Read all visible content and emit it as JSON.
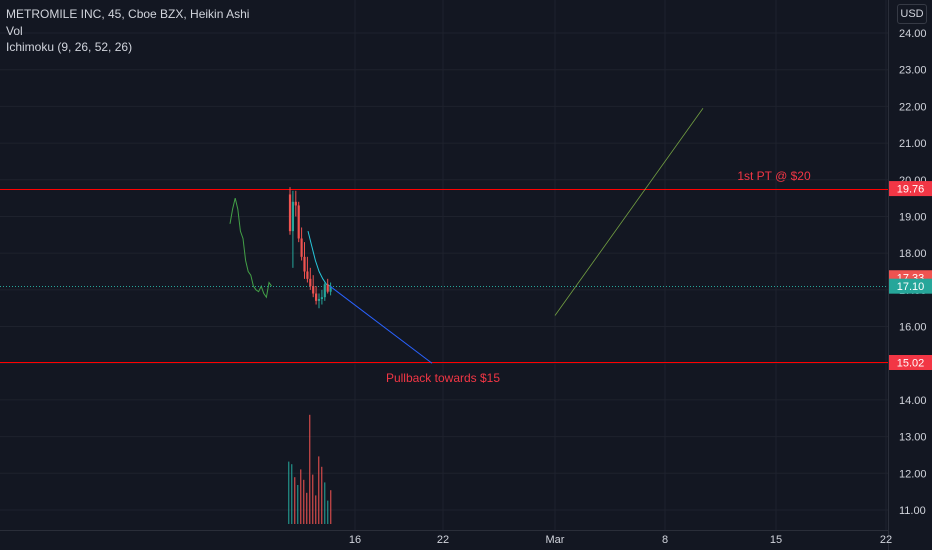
{
  "legend": {
    "title": "METROMILE INC, 45, Cboe BZX, Heikin Ashi",
    "vol": "Vol",
    "ichimoku": "Ichimoku (9, 26, 52, 26)"
  },
  "currency_button": "USD",
  "colors": {
    "background": "#131722",
    "grid": "#1e222d",
    "axis_text": "#d1d4dc",
    "up": "#26a69a",
    "down": "#ef5350",
    "level_line": "#ff0000",
    "trend_line": "#2962ff",
    "ichimoku_lagging": "#43a047"
  },
  "chart_data": {
    "type": "candlestick",
    "instrument": "METROMILE INC",
    "interval": "45",
    "exchange": "Cboe BZX",
    "style": "Heikin Ashi",
    "y_axis": {
      "ticks": [
        "11.00",
        "12.00",
        "13.00",
        "14.00",
        "15.00",
        "16.00",
        "17.00",
        "18.00",
        "19.00",
        "20.00",
        "21.00",
        "22.00",
        "23.00",
        "24.00"
      ],
      "ylim": [
        10.5,
        24.6
      ]
    },
    "x_axis": {
      "ticks": [
        "16",
        "22",
        "Mar",
        "8",
        "15",
        "22"
      ]
    },
    "price_labels": [
      {
        "value": "19.76",
        "color": "#f23645"
      },
      {
        "value": "17.33",
        "color": "#ef5350"
      },
      {
        "value": "17.10",
        "color": "#26a69a"
      },
      {
        "value": "15.02",
        "color": "#f23645"
      }
    ],
    "horizontal_levels": [
      19.76,
      15.02
    ],
    "dotted_levels": [
      17.1
    ],
    "annotations": [
      {
        "text": "1st PT @ $20",
        "price": 20.1
      },
      {
        "text": "Pullback towards $15",
        "price": 14.6
      }
    ],
    "candles": [
      {
        "o": 19.6,
        "h": 19.8,
        "l": 18.5,
        "c": 18.6
      },
      {
        "o": 18.6,
        "h": 19.7,
        "l": 17.6,
        "c": 19.4
      },
      {
        "o": 19.4,
        "h": 19.7,
        "l": 19.0,
        "c": 19.3
      },
      {
        "o": 19.3,
        "h": 19.4,
        "l": 18.3,
        "c": 18.4
      },
      {
        "o": 18.4,
        "h": 18.7,
        "l": 17.8,
        "c": 17.9
      },
      {
        "o": 17.9,
        "h": 18.3,
        "l": 17.3,
        "c": 17.5
      },
      {
        "o": 17.5,
        "h": 17.9,
        "l": 17.2,
        "c": 17.3
      },
      {
        "o": 17.3,
        "h": 17.6,
        "l": 17.0,
        "c": 17.1
      },
      {
        "o": 17.1,
        "h": 17.4,
        "l": 16.8,
        "c": 16.9
      },
      {
        "o": 16.9,
        "h": 17.1,
        "l": 16.6,
        "c": 16.7
      },
      {
        "o": 16.7,
        "h": 16.9,
        "l": 16.5,
        "c": 16.75
      },
      {
        "o": 16.75,
        "h": 17.0,
        "l": 16.6,
        "c": 16.8
      },
      {
        "o": 16.8,
        "h": 17.2,
        "l": 16.7,
        "c": 17.15
      },
      {
        "o": 17.15,
        "h": 17.3,
        "l": 16.9,
        "c": 16.95
      },
      {
        "o": 16.95,
        "h": 17.2,
        "l": 16.85,
        "c": 17.1
      }
    ],
    "volume": [
      {
        "v": 2.4,
        "up": true
      },
      {
        "v": 2.3,
        "up": true
      },
      {
        "v": 1.8,
        "up": false
      },
      {
        "v": 1.5,
        "up": true
      },
      {
        "v": 2.1,
        "up": false
      },
      {
        "v": 1.7,
        "up": false
      },
      {
        "v": 1.2,
        "up": false
      },
      {
        "v": 4.2,
        "up": false
      },
      {
        "v": 1.9,
        "up": false
      },
      {
        "v": 1.1,
        "up": false
      },
      {
        "v": 2.6,
        "up": false
      },
      {
        "v": 2.2,
        "up": false
      },
      {
        "v": 1.6,
        "up": true
      },
      {
        "v": 0.9,
        "up": true
      },
      {
        "v": 1.3,
        "up": false
      }
    ],
    "ichimoku_lagging_span": [
      18.8,
      19.2,
      19.5,
      19.2,
      18.6,
      18.4,
      17.8,
      17.5,
      17.4,
      17.1,
      17.0,
      16.95,
      17.1,
      16.9,
      16.8,
      17.2,
      17.1
    ],
    "ichimoku_conversion": [
      18.6,
      18.2,
      17.8,
      17.5,
      17.3,
      17.15,
      17.1
    ]
  }
}
